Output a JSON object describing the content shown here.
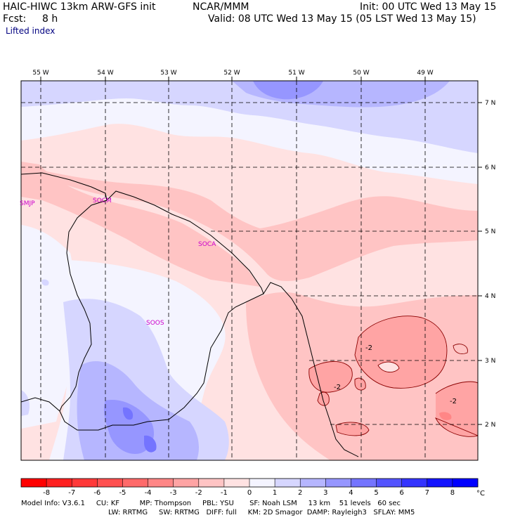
{
  "header": {
    "model_title": "HAIC-HIWC 13km ARW-GFS init",
    "center": "NCAR/MMM",
    "init": "Init: 00 UTC Wed 13 May 15",
    "fcst_label": "Fcst:",
    "fcst_value": "8 h",
    "valid": "Valid: 08 UTC Wed 13 May 15 (05 LST Wed 13 May 15)",
    "field": "Lifted index"
  },
  "map": {
    "lon_labels": [
      "55 W",
      "54 W",
      "53 W",
      "52 W",
      "51 W",
      "50 W",
      "49 W"
    ],
    "lat_labels": [
      "7 N",
      "6 N",
      "5 N",
      "4 N",
      "3 N",
      "2 N"
    ],
    "stations": [
      "SMJP",
      "SOCM",
      "SOCA",
      "SOOS"
    ],
    "contour_labels": [
      "-2",
      "-2",
      "-2"
    ]
  },
  "colorbar": {
    "ticks": [
      "-8",
      "-7",
      "-6",
      "-5",
      "-4",
      "-3",
      "-2",
      "-1",
      "0",
      "1",
      "2",
      "3",
      "4",
      "5",
      "6",
      "7",
      "8"
    ],
    "unit": "°C",
    "colors": [
      "#ff0000",
      "#ff2020",
      "#ff3838",
      "#ff5050",
      "#ff6a6a",
      "#ff8686",
      "#ffa4a4",
      "#ffc4c4",
      "#ffe2e2",
      "#f4f4ff",
      "#d6d6ff",
      "#b6b6ff",
      "#9696ff",
      "#7474ff",
      "#5454ff",
      "#3434ff",
      "#1414ff",
      "#0000ff"
    ]
  },
  "model_info": {
    "line1": "Model Info: V3.6.1     CU: KF         MP: Thompson     PBL: YSU       SF: Noah LSM     13 km    51 levels   60 sec",
    "line2": "LW: RRTMG     SW: RRTMG   DIFF: full     KM: 2D Smagor  DAMP: Rayleigh3   SFLAY: MM5"
  }
}
